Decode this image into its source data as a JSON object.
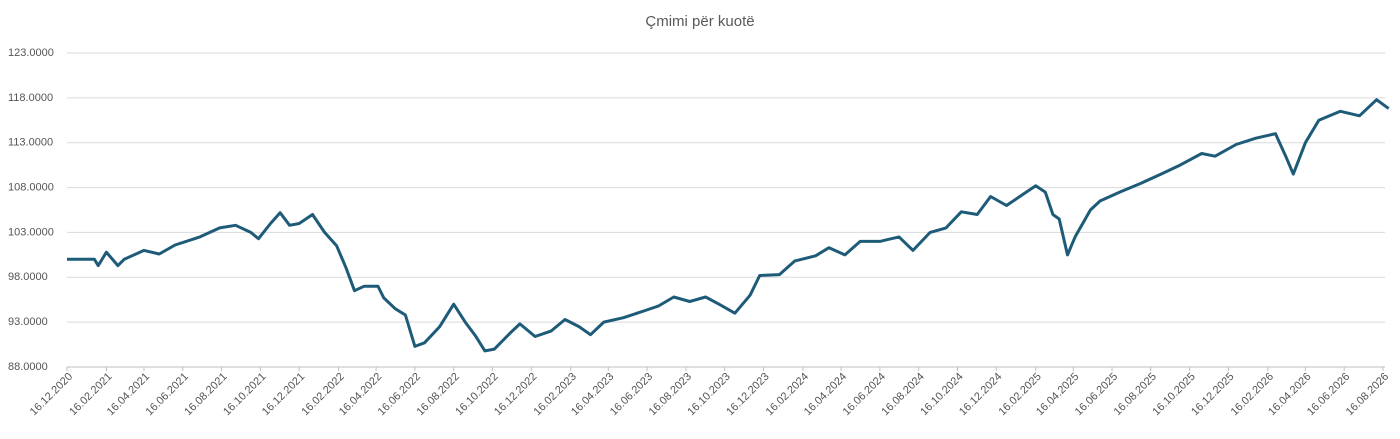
{
  "chart_data": {
    "type": "line",
    "title": "Çmimi për kuotë",
    "x": [
      "16.12.2020",
      "28.01.2021",
      "03.02.2021",
      "16.02.2021",
      "06.03.2021",
      "16.03.2021",
      "16.04.2021",
      "10.05.2021",
      "04.06.2021",
      "13.07.2021",
      "13.08.2021",
      "07.09.2021",
      "01.10.2021",
      "13.10.2021",
      "01.11.2021",
      "16.11.2021",
      "01.12.2021",
      "16.12.2021",
      "06.01.2022",
      "25.01.2022",
      "13.02.2022",
      "28.02.2022",
      "13.03.2022",
      "28.03.2022",
      "19.04.2022",
      "28.04.2022",
      "16.05.2022",
      "01.06.2022",
      "16.06.2022",
      "01.07.2022",
      "25.07.2022",
      "16.08.2022",
      "03.09.2022",
      "19.09.2022",
      "04.10.2022",
      "19.10.2022",
      "13.11.2022",
      "28.11.2022",
      "22.12.2022",
      "16.01.2023",
      "07.02.2023",
      "01.03.2023",
      "19.03.2023",
      "09.04.2023",
      "10.05.2023",
      "13.06.2023",
      "04.07.2023",
      "28.07.2023",
      "22.08.2023",
      "16.09.2023",
      "07.10.2023",
      "01.11.2023",
      "25.11.2023",
      "10.12.2023",
      "10.01.2024",
      "03.02.2024",
      "07.03.2024",
      "28.03.2024",
      "22.04.2024",
      "16.05.2024",
      "16.06.2024",
      "16.07.2024",
      "07.08.2024",
      "03.09.2024",
      "28.09.2024",
      "22.10.2024",
      "16.11.2024",
      "07.12.2024",
      "01.01.2025",
      "22.01.2025",
      "16.02.2025",
      "03.03.2025",
      "15.03.2025",
      "25.03.2025",
      "07.04.2025",
      "19.04.2025",
      "13.05.2025",
      "28.05.2025",
      "28.06.2025",
      "01.08.2025",
      "01.09.2025",
      "01.10.2025",
      "04.11.2025",
      "25.11.2025",
      "28.12.2025",
      "28.01.2026",
      "28.02.2026",
      "16.03.2026",
      "28.03.2026",
      "16.04.2026",
      "07.05.2026",
      "10.06.2026",
      "10.07.2026",
      "06.08.2026",
      "25.08.2026"
    ],
    "values": [
      100.0,
      100.0,
      99.3,
      100.8,
      99.3,
      100.0,
      101.0,
      100.6,
      101.6,
      102.5,
      103.5,
      103.8,
      103.0,
      102.3,
      104.0,
      105.2,
      103.8,
      104.0,
      105.0,
      103.0,
      101.5,
      99.0,
      96.5,
      97.0,
      97.0,
      95.7,
      94.5,
      93.8,
      90.3,
      90.7,
      92.5,
      95.0,
      93.0,
      91.5,
      89.8,
      90.0,
      91.8,
      92.8,
      91.4,
      92.0,
      93.3,
      92.5,
      91.6,
      93.0,
      93.5,
      94.3,
      94.8,
      95.8,
      95.3,
      95.8,
      95.0,
      94.0,
      96.0,
      98.2,
      98.3,
      99.8,
      100.4,
      101.3,
      100.5,
      102.0,
      102.0,
      102.5,
      101.0,
      103.0,
      103.5,
      105.3,
      105.0,
      107.0,
      106.0,
      107.0,
      108.2,
      107.5,
      105.0,
      104.5,
      100.5,
      102.5,
      105.5,
      106.5,
      107.5,
      108.5,
      109.5,
      110.5,
      111.8,
      111.5,
      112.8,
      113.5,
      114.0,
      111.5,
      109.5,
      113.0,
      115.5,
      116.5,
      116.0,
      117.8,
      116.8
    ],
    "color": "#1d5b79",
    "xlim": [
      "16.12.2020",
      "25.08.2026"
    ],
    "xticks": [
      "16.12.2020",
      "16.02.2021",
      "16.04.2021",
      "16.06.2021",
      "16.08.2021",
      "16.10.2021",
      "16.12.2021",
      "16.02.2022",
      "16.04.2022",
      "16.06.2022",
      "16.08.2022",
      "16.10.2022",
      "16.12.2022",
      "16.02.2023",
      "16.04.2023",
      "16.06.2023",
      "16.08.2023",
      "16.10.2023",
      "16.12.2023",
      "16.02.2024",
      "16.04.2024",
      "16.06.2024",
      "16.08.2024",
      "16.10.2024",
      "16.12.2024",
      "16.02.2025",
      "16.04.2025",
      "16.06.2025",
      "16.08.2025",
      "16.10.2025",
      "16.12.2025",
      "16.02.2026",
      "16.04.2026",
      "16.06.2026",
      "16.08.2026"
    ],
    "ylim": [
      88,
      123
    ],
    "yticks": [
      {
        "value": 88,
        "label": "88.0000"
      },
      {
        "value": 93,
        "label": "93.0000"
      },
      {
        "value": 98,
        "label": "98.0000"
      },
      {
        "value": 103,
        "label": "103.0000"
      },
      {
        "value": 108,
        "label": "108.0000"
      },
      {
        "value": 113,
        "label": "113.0000"
      },
      {
        "value": 118,
        "label": "118.0000"
      },
      {
        "value": 123,
        "label": "123.0000"
      }
    ],
    "grid": true
  }
}
